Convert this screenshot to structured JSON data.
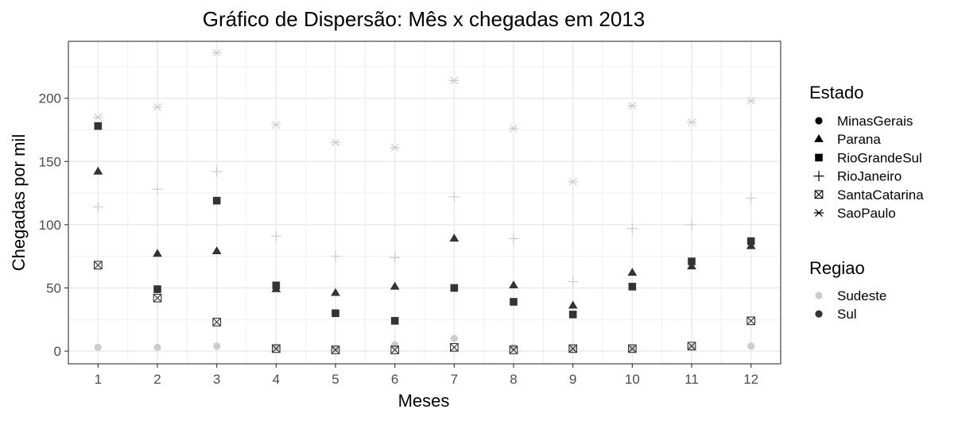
{
  "chart_data": {
    "type": "scatter",
    "title": "Gráfico de Dispersão: Mês x chegadas em 2013",
    "xlabel": "Meses",
    "ylabel": "Chegadas por mil",
    "x": [
      1,
      2,
      3,
      4,
      5,
      6,
      7,
      8,
      9,
      10,
      11,
      12
    ],
    "xlim": [
      0.5,
      12.5
    ],
    "ylim": [
      -10,
      245
    ],
    "xticks": [
      "1",
      "2",
      "3",
      "4",
      "5",
      "6",
      "7",
      "8",
      "9",
      "10",
      "11",
      "12"
    ],
    "yticks": [
      "0",
      "50",
      "100",
      "150",
      "200"
    ],
    "grid": true,
    "legend_position": "right",
    "legends": [
      {
        "title": "Estado",
        "shape_encodes": "Estado",
        "entries": [
          {
            "label": "MinasGerais",
            "shape": "circle"
          },
          {
            "label": "Parana",
            "shape": "triangle"
          },
          {
            "label": "RioGrandeSul",
            "shape": "square"
          },
          {
            "label": "RioJaneiro",
            "shape": "plus"
          },
          {
            "label": "SantaCatarina",
            "shape": "boxed-x"
          },
          {
            "label": "SaoPaulo",
            "shape": "star"
          }
        ]
      },
      {
        "title": "Regiao",
        "color_encodes": "Regiao",
        "entries": [
          {
            "label": "Sudeste",
            "color": "#cccccc"
          },
          {
            "label": "Sul",
            "color": "#333333"
          }
        ]
      }
    ],
    "series": [
      {
        "name": "MinasGerais",
        "shape": "circle",
        "regiao": "Sudeste",
        "color": "#cccccc",
        "values": [
          3,
          3,
          4,
          3,
          2,
          5,
          10,
          3,
          2,
          2,
          3,
          4
        ]
      },
      {
        "name": "Parana",
        "shape": "triangle",
        "regiao": "Sul",
        "color": "#333333",
        "values": [
          142,
          77,
          79,
          49,
          46,
          51,
          89,
          52,
          36,
          62,
          67,
          83
        ]
      },
      {
        "name": "RioGrandeSul",
        "shape": "square",
        "regiao": "Sul",
        "color": "#333333",
        "values": [
          178,
          49,
          119,
          52,
          30,
          24,
          50,
          39,
          29,
          51,
          71,
          87
        ]
      },
      {
        "name": "RioJaneiro",
        "shape": "plus",
        "regiao": "Sudeste",
        "color": "#cccccc",
        "values": [
          114,
          128,
          142,
          91,
          75,
          74,
          122,
          89,
          55,
          97,
          100,
          121
        ]
      },
      {
        "name": "SantaCatarina",
        "shape": "boxed-x",
        "regiao": "Sul",
        "color": "#333333",
        "values": [
          68,
          42,
          23,
          2,
          1,
          1,
          3,
          1,
          2,
          2,
          4,
          24
        ]
      },
      {
        "name": "SaoPaulo",
        "shape": "star",
        "regiao": "Sudeste",
        "color": "#cccccc",
        "values": [
          185,
          193,
          236,
          179,
          165,
          161,
          214,
          176,
          134,
          194,
          181,
          198
        ]
      }
    ]
  }
}
